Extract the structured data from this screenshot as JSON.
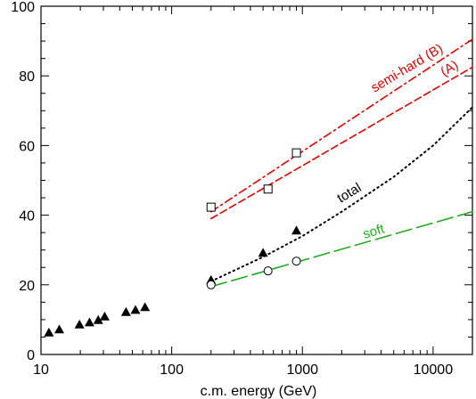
{
  "chart_data": {
    "type": "scatter",
    "title": "",
    "xlabel": "c.m. energy (GeV)",
    "ylabel": "",
    "xscale": "log",
    "xlim": [
      10,
      20000
    ],
    "ylim": [
      0,
      100
    ],
    "grid": false,
    "xticks": [
      {
        "value": 10,
        "label": "10"
      },
      {
        "value": 100,
        "label": "100"
      },
      {
        "value": 1000,
        "label": "1000"
      },
      {
        "value": 10000,
        "label": "10000"
      }
    ],
    "yticks": [
      {
        "value": 0,
        "label": "0"
      },
      {
        "value": 20,
        "label": "20"
      },
      {
        "value": 40,
        "label": "40"
      },
      {
        "value": 60,
        "label": "60"
      },
      {
        "value": 80,
        "label": "80"
      },
      {
        "value": 100,
        "label": "100"
      }
    ],
    "series": [
      {
        "kind": "points",
        "marker": "triangle",
        "color": "#000000",
        "x": [
          11.5,
          13.8,
          19.7,
          23.5,
          27.4,
          30.7,
          44.7,
          52.8,
          62.5,
          200,
          500,
          900
        ],
        "y": [
          6.3,
          7.2,
          8.6,
          9.2,
          9.9,
          10.9,
          12.2,
          12.8,
          13.6,
          21.4,
          29.2,
          35.6
        ]
      },
      {
        "kind": "points",
        "marker": "open-circle",
        "color": "#000000",
        "x": [
          200,
          546,
          900
        ],
        "y": [
          20.0,
          24.0,
          26.8
        ]
      },
      {
        "kind": "points",
        "marker": "open-square",
        "color": "#000000",
        "x": [
          200,
          546,
          900
        ],
        "y": [
          42.3,
          47.5,
          57.9
        ]
      },
      {
        "name": "semi-hard (B)",
        "kind": "line",
        "style": "dash-dot",
        "color": "#dd0000",
        "x": [
          200,
          20000
        ],
        "y": [
          41.0,
          90.5
        ]
      },
      {
        "name": "(A)",
        "kind": "line",
        "style": "dashed",
        "color": "#dd0000",
        "x": [
          200,
          20000
        ],
        "y": [
          39.0,
          82.5
        ]
      },
      {
        "name": "total",
        "kind": "line",
        "style": "dotted",
        "color": "#000000",
        "x": [
          200,
          500,
          1000,
          2000,
          5000,
          10000,
          20000
        ],
        "y": [
          21.0,
          28.0,
          34.0,
          41.0,
          51.0,
          60.0,
          71.0
        ]
      },
      {
        "name": "soft",
        "kind": "line",
        "style": "long-dash",
        "color": "#22aa22",
        "x": [
          200,
          20000
        ],
        "y": [
          19.5,
          41.0
        ]
      }
    ]
  }
}
